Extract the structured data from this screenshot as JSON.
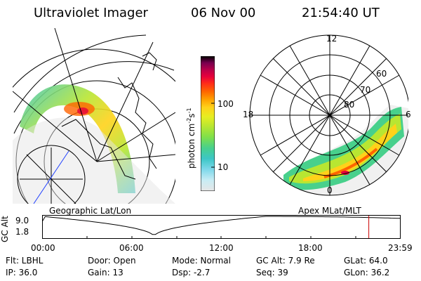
{
  "header": {
    "instrument": "Ultraviolet Imager",
    "date": "06 Nov 00",
    "time": "21:54:40 UT"
  },
  "colorbar": {
    "label": "photon cm",
    "label_sup1": "-2",
    "label_unit2": "s",
    "label_sup2": "-1",
    "tick_100": "100",
    "tick_10": "10",
    "scale": "log",
    "colors": [
      "#e6e6e6",
      "#c8ecf4",
      "#7fd8ea",
      "#3cc6c6",
      "#48d08c",
      "#7fe04a",
      "#b8e632",
      "#e6ee22",
      "#ffd21a",
      "#ffa000",
      "#ff6400",
      "#ff2a1a",
      "#e6003c",
      "#b8004a",
      "#7a0050",
      "#2a003a",
      "#000000"
    ]
  },
  "left_map": {
    "caption": "Geographic Lat/Lon"
  },
  "right_map": {
    "caption": "Apex MLat/MLT",
    "mlt_labels": {
      "top": "12",
      "left": "18",
      "right": "6",
      "bottom": "0"
    },
    "lat_labels": [
      "60",
      "70",
      "80"
    ]
  },
  "timeline": {
    "ylabel": "GC Alt",
    "y_ticks": [
      "9.0",
      "1.8"
    ],
    "x_ticks": [
      "00:00",
      "06:00",
      "12:00",
      "18:00",
      "23:59"
    ],
    "marker_time": "21:54:40",
    "marker_color": "#cc0000"
  },
  "info": {
    "row1": [
      {
        "key": "flt",
        "text": "Flt: LBHL"
      },
      {
        "key": "door",
        "text": "Door: Open"
      },
      {
        "key": "mode",
        "text": "Mode: Normal"
      },
      {
        "key": "gcalt",
        "text": "GC Alt: 7.9 Re"
      },
      {
        "key": "glat",
        "text": "GLat:  64.0"
      }
    ],
    "row2": [
      {
        "key": "ip",
        "text": "IP: 36.0"
      },
      {
        "key": "gain",
        "text": "Gain: 13"
      },
      {
        "key": "dsp",
        "text": "Dsp:   -2.7"
      },
      {
        "key": "seq",
        "text": "Seq: 39"
      },
      {
        "key": "glon",
        "text": "GLon:  36.2"
      }
    ]
  }
}
